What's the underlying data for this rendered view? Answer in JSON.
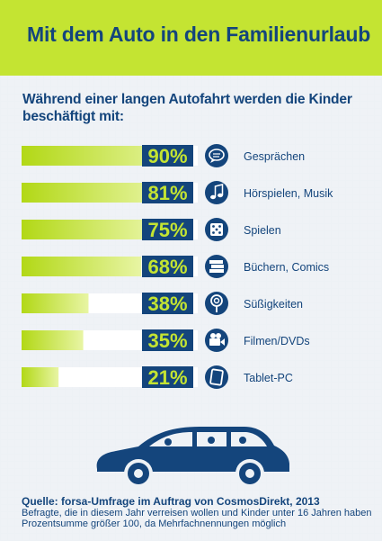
{
  "header": {
    "title": "Mit dem Auto in den Familienurlaub"
  },
  "subtitle": "Während einer langen Autofahrt werden die Kinder beschäftigt mit:",
  "chart_data": {
    "type": "bar",
    "orientation": "horizontal",
    "categories": [
      "Gesprächen",
      "Hörspielen, Musik",
      "Spielen",
      "Büchern, Comics",
      "Süßigkeiten",
      "Filmen/DVDs",
      "Tablet-PC"
    ],
    "value_labels": [
      "90%",
      "81%",
      "75%",
      "68%",
      "38%",
      "35%",
      "21%"
    ],
    "values": [
      90,
      81,
      75,
      68,
      38,
      35,
      21
    ],
    "icons": [
      "speech-bubble-icon",
      "music-note-icon",
      "dice-icon",
      "books-icon",
      "lollipop-icon",
      "video-camera-icon",
      "tablet-icon"
    ],
    "xlim": [
      0,
      100
    ],
    "title": "",
    "xlabel": "",
    "ylabel": "",
    "grid": false,
    "colors": {
      "bar_start": "#b2d816",
      "bar_end": "#e6f3a8",
      "track": "#ffffff",
      "label_box": "#14457c",
      "label_text": "#c4e432",
      "icon_circle": "#14457c",
      "text": "#14457c"
    }
  },
  "footer": {
    "source": "Quelle: forsa-Umfrage im Auftrag von CosmosDirekt, 2013",
    "note1": "Befragte, die in diesem Jahr verreisen wollen und Kinder unter 16 Jahren haben",
    "note2": "Prozentsumme größer 100, da Mehrfachnennungen möglich"
  },
  "colors": {
    "header_bg": "#c4e432",
    "title": "#14457c"
  }
}
